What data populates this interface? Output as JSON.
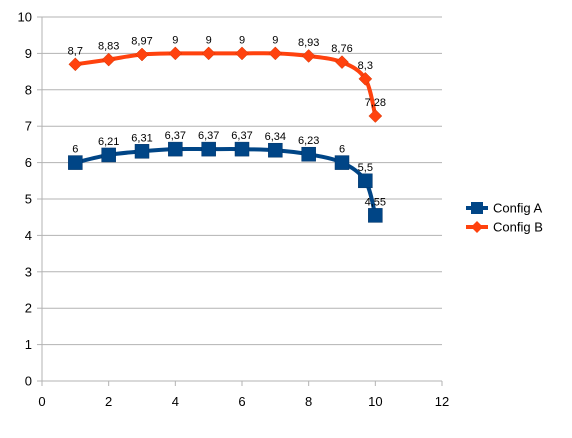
{
  "chart_data": {
    "type": "scatter",
    "title": "",
    "xlabel": "",
    "ylabel": "",
    "xlim": [
      0,
      12
    ],
    "ylim": [
      0,
      10
    ],
    "x_ticks": [
      "0",
      "2",
      "4",
      "6",
      "8",
      "10",
      "12"
    ],
    "y_ticks": [
      "0",
      "1",
      "2",
      "3",
      "4",
      "5",
      "6",
      "7",
      "8",
      "9",
      "10"
    ],
    "grid": true,
    "legend_position": "right",
    "series": [
      {
        "name": "Config A",
        "color": "#004586",
        "marker": "square",
        "x": [
          1,
          2,
          3,
          4,
          5,
          6,
          7,
          8,
          9,
          9.7,
          10
        ],
        "y": [
          6,
          6.21,
          6.31,
          6.37,
          6.37,
          6.37,
          6.34,
          6.23,
          6,
          5.5,
          4.55
        ],
        "labels": [
          "6",
          "6,21",
          "6,31",
          "6,37",
          "6,37",
          "6,37",
          "6,34",
          "6,23",
          "6",
          "5,5",
          "4,55"
        ]
      },
      {
        "name": "Config B",
        "color": "#ff420e",
        "marker": "diamond",
        "x": [
          1,
          2,
          3,
          4,
          5,
          6,
          7,
          8,
          9,
          9.7,
          10
        ],
        "y": [
          8.7,
          8.83,
          8.97,
          9,
          9,
          9,
          9,
          8.93,
          8.76,
          8.3,
          7.28
        ],
        "labels": [
          "8,7",
          "8,83",
          "8,97",
          "9",
          "9",
          "9",
          "9",
          "8,93",
          "8,76",
          "8,3",
          "7,28"
        ]
      }
    ]
  }
}
